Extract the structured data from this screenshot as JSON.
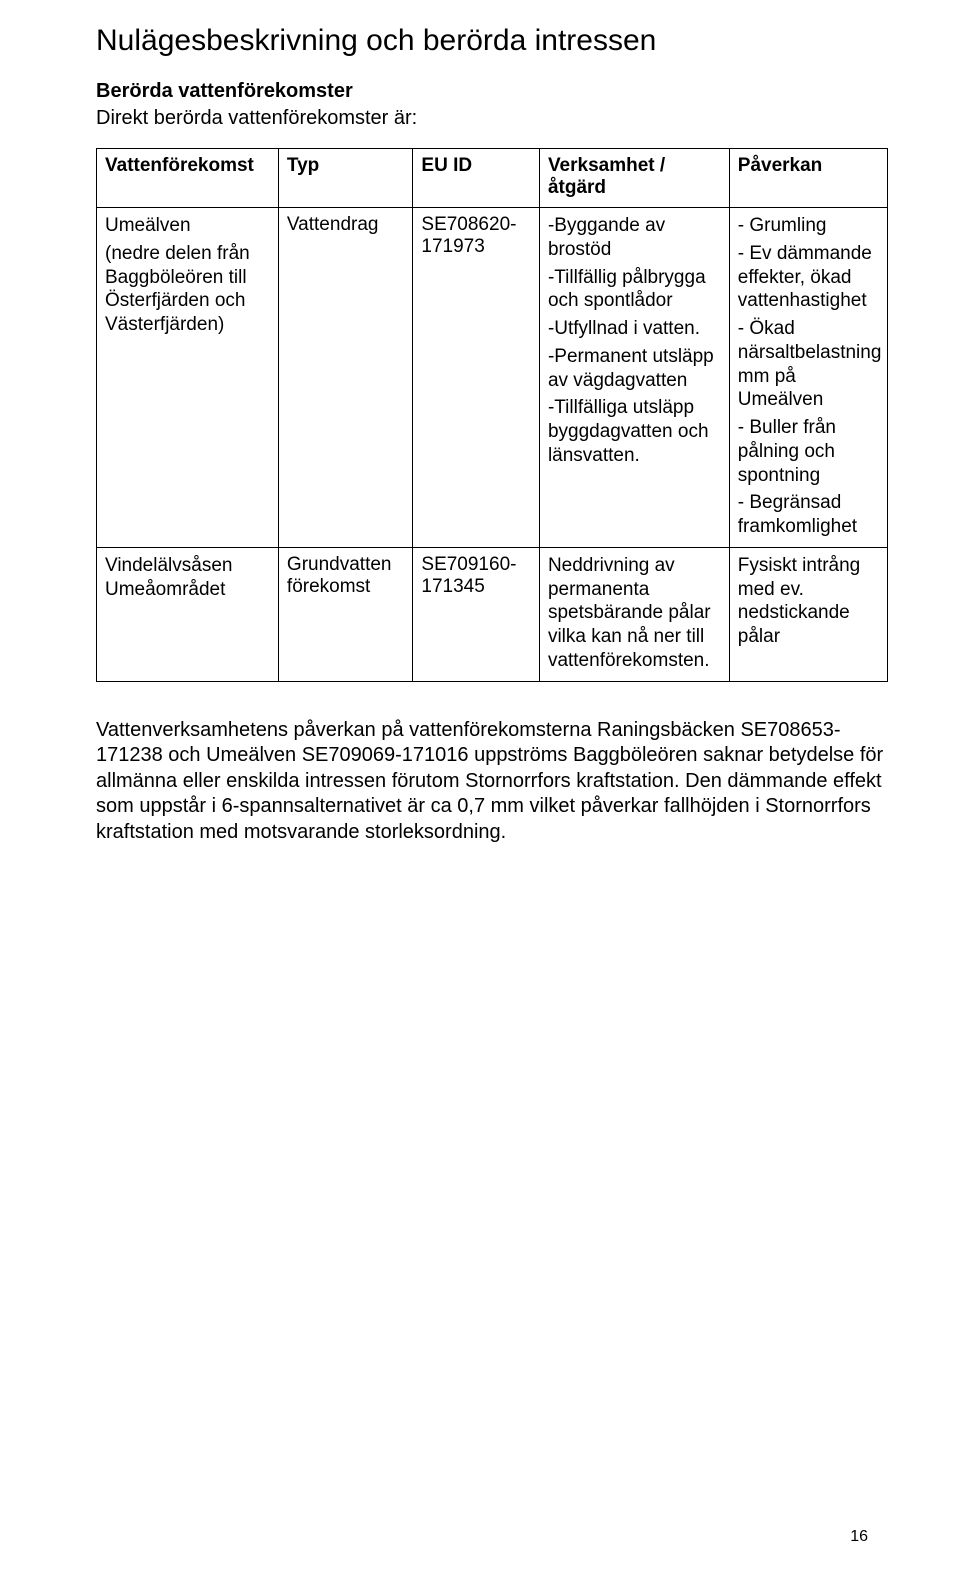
{
  "title": "Nulägesbeskrivning och berörda intressen",
  "subheading": "Berörda vattenförekomster",
  "lead": "Direkt berörda vattenförekomster är:",
  "table": {
    "headers": [
      "Vattenförekomst",
      "Typ",
      "EU ID",
      "Verksamhet / åtgärd",
      "Påverkan"
    ],
    "rows": [
      {
        "c1_lines": [
          "Umeälven",
          "(nedre delen från Baggböleören till Österfjärden och Västerfjärden)"
        ],
        "c2": "Vattendrag",
        "c3": "SE708620-171973",
        "c4_lines": [
          "-Byggande av brostöd",
          "-Tillfällig pålbrygga och spontlådor",
          "-Utfyllnad i vatten.",
          "-Permanent utsläpp av vägdagvatten",
          "-Tillfälliga utsläpp byggdagvatten och länsvatten."
        ],
        "c5_lines": [
          "- Grumling",
          "- Ev dämmande effekter, ökad vattenhastighet",
          "- Ökad närsaltbelastning mm på Umeälven",
          "- Buller från pålning och spontning",
          "- Begränsad framkomlighet"
        ]
      },
      {
        "c1_lines": [
          "Vindelälvsåsen Umeåområdet"
        ],
        "c2": "Grundvatten förekomst",
        "c3": "SE709160-171345",
        "c4_lines": [
          "Neddrivning av permanenta spetsbärande pålar vilka kan nå ner till vattenförekomsten."
        ],
        "c5_lines": [
          "Fysiskt intrång med ev. nedstickande pålar"
        ]
      }
    ]
  },
  "closing_paragraph": "Vattenverksamhetens påverkan på vattenförekomsterna Raningsbäcken SE708653-171238 och Umeälven SE709069-171016 uppströms Baggböleören saknar betydelse för allmänna eller enskilda intressen förutom Stornorrfors kraftstation. Den dämmande effekt som uppstår i 6-spannsalternativet är ca 0,7 mm vilket påverkar fallhöjden i Stornorrfors kraftstation med motsvarande storleksordning.",
  "page_number": "16"
}
